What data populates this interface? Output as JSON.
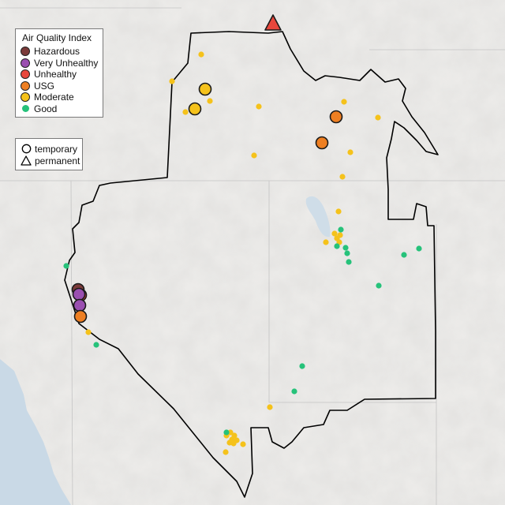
{
  "legend": {
    "title": "Air Quality Index",
    "categories": [
      {
        "key": "hazardous",
        "label": "Hazardous",
        "color": "#7b3b3a"
      },
      {
        "key": "very-unhealthy",
        "label": "Very Unhealthy",
        "color": "#9a4fb0"
      },
      {
        "key": "unhealthy",
        "label": "Unhealthy",
        "color": "#e8473c"
      },
      {
        "key": "usg",
        "label": "USG",
        "color": "#ee7f22"
      },
      {
        "key": "moderate",
        "label": "Moderate",
        "color": "#f5c21b"
      },
      {
        "key": "good",
        "label": "Good",
        "color": "#26c27a"
      }
    ],
    "monitor_types": [
      {
        "key": "temporary",
        "label": "temporary",
        "symbol": "circle"
      },
      {
        "key": "permanent",
        "label": "permanent",
        "symbol": "triangle"
      }
    ]
  },
  "monitors": {
    "large": [
      {
        "category": "unhealthy",
        "type": "permanent"
      },
      {
        "category": "moderate",
        "type": "temporary"
      },
      {
        "category": "moderate",
        "type": "temporary"
      },
      {
        "category": "usg",
        "type": "temporary"
      },
      {
        "category": "usg",
        "type": "temporary"
      },
      {
        "category": "hazardous",
        "type": "temporary"
      },
      {
        "category": "unhealthy",
        "type": "temporary"
      },
      {
        "category": "very-unhealthy",
        "type": "temporary"
      },
      {
        "category": "very-unhealthy",
        "type": "temporary"
      },
      {
        "category": "usg",
        "type": "temporary"
      }
    ],
    "small": [
      {
        "category": "moderate"
      },
      {
        "category": "moderate"
      },
      {
        "category": "moderate"
      },
      {
        "category": "moderate"
      },
      {
        "category": "moderate"
      },
      {
        "category": "moderate"
      },
      {
        "category": "moderate"
      },
      {
        "category": "moderate"
      },
      {
        "category": "moderate"
      },
      {
        "category": "moderate"
      },
      {
        "category": "moderate"
      },
      {
        "category": "moderate"
      },
      {
        "category": "moderate"
      },
      {
        "category": "moderate"
      },
      {
        "category": "moderate"
      },
      {
        "category": "moderate"
      },
      {
        "category": "moderate"
      },
      {
        "category": "moderate"
      },
      {
        "category": "moderate"
      },
      {
        "category": "moderate"
      },
      {
        "category": "moderate"
      },
      {
        "category": "moderate"
      },
      {
        "category": "moderate"
      },
      {
        "category": "moderate"
      },
      {
        "category": "moderate"
      },
      {
        "category": "moderate"
      },
      {
        "category": "moderate"
      },
      {
        "category": "good"
      },
      {
        "category": "good"
      },
      {
        "category": "good"
      },
      {
        "category": "good"
      },
      {
        "category": "good"
      },
      {
        "category": "good"
      },
      {
        "category": "good"
      },
      {
        "category": "good"
      },
      {
        "category": "good"
      },
      {
        "category": "good"
      },
      {
        "category": "good"
      },
      {
        "category": "good"
      },
      {
        "category": "good"
      }
    ]
  }
}
